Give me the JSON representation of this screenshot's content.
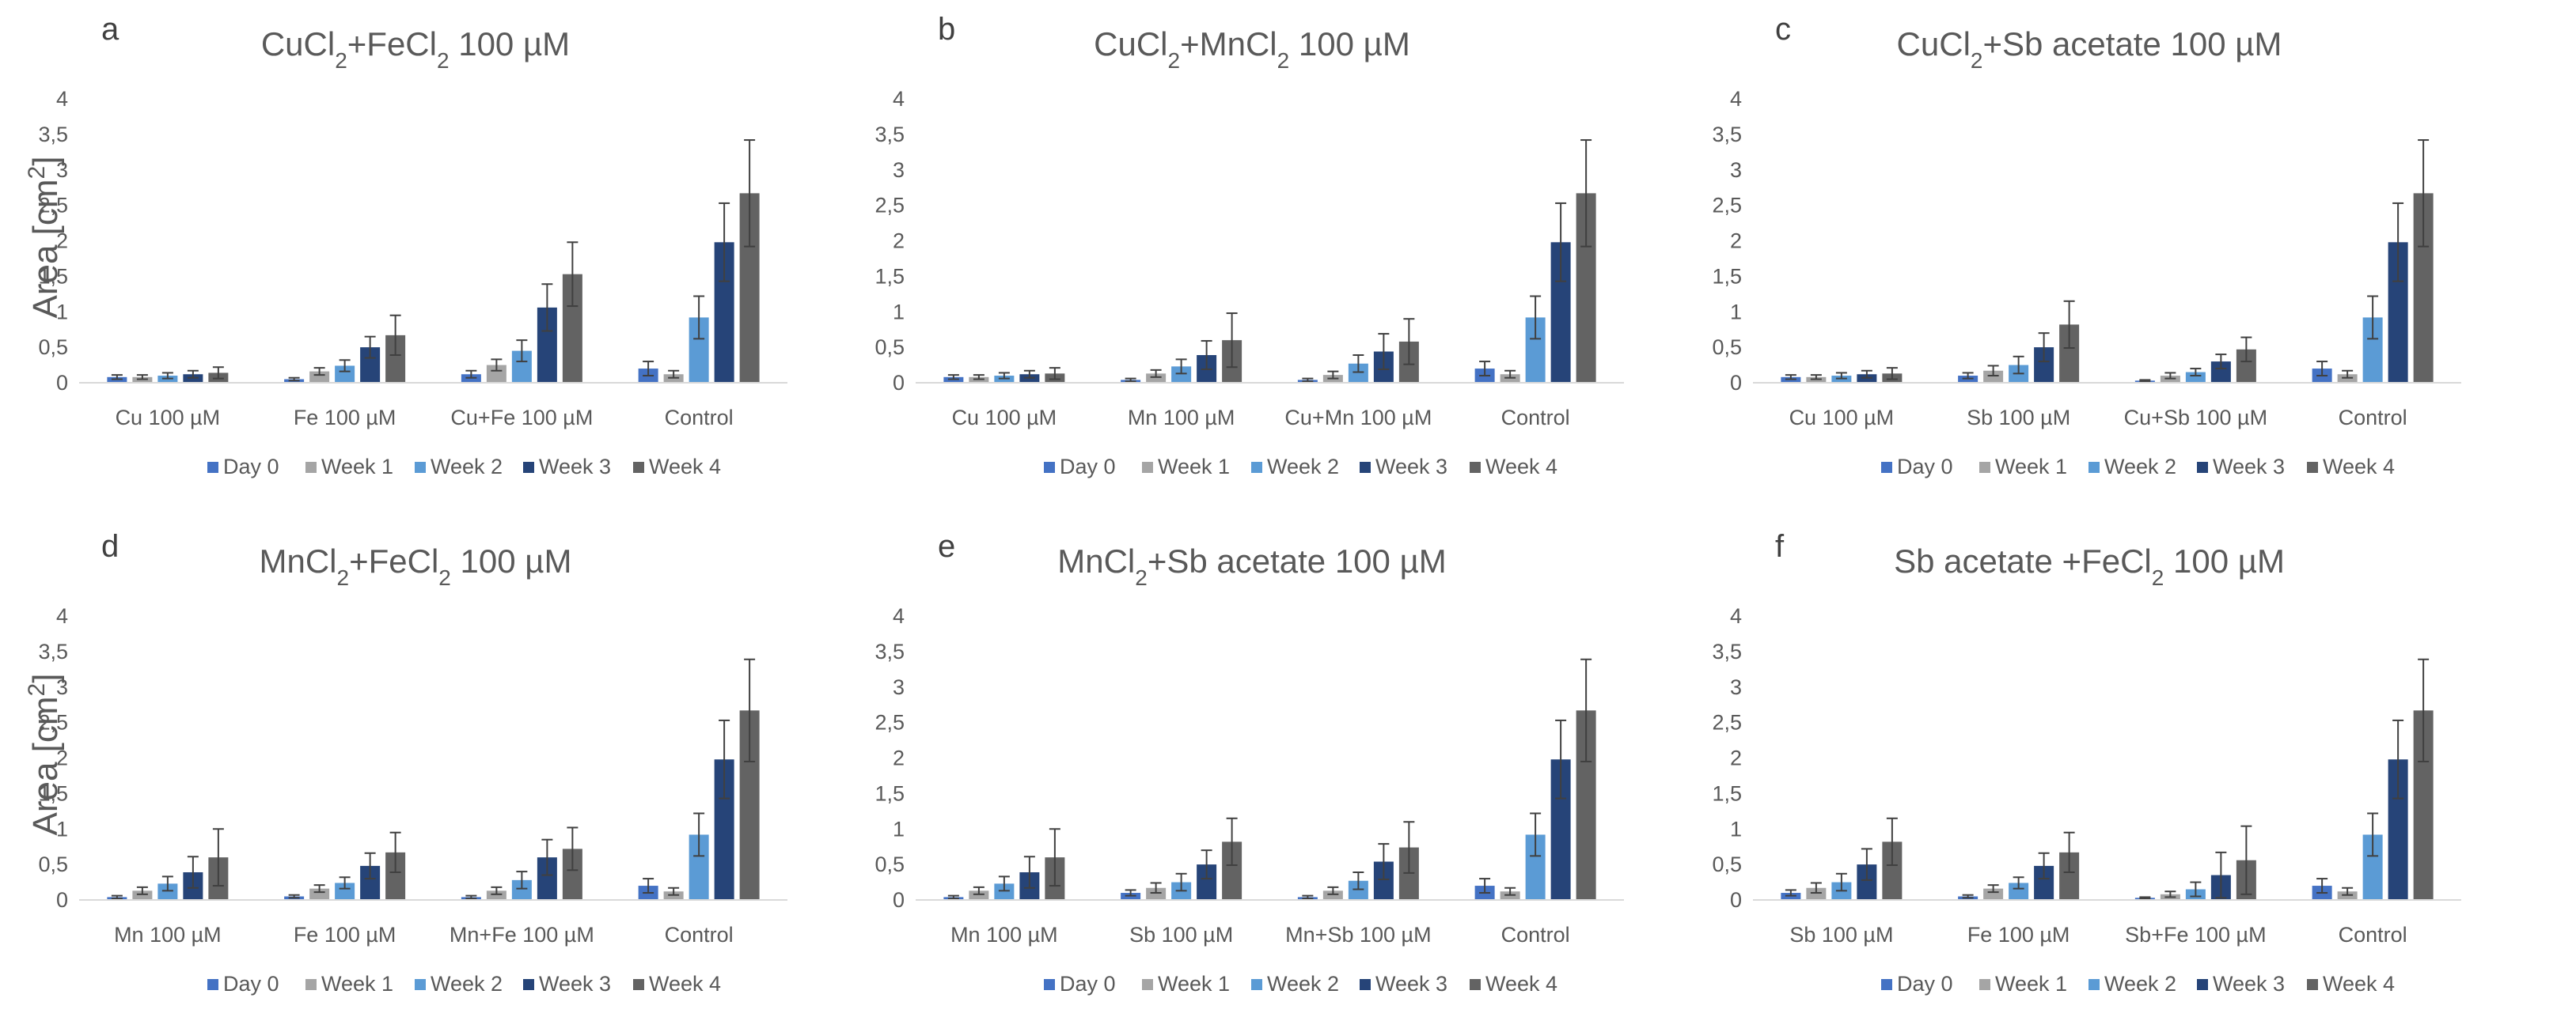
{
  "figure": {
    "ylabel_text": "Area [cm",
    "ylabel_sup": "2",
    "ylabel_close": "]"
  },
  "colors": {
    "Day 0": "#4472c4",
    "Week 1": "#a5a5a5",
    "Week 2": "#5b9bd5",
    "Week 3": "#264478",
    "Week 4": "#636363",
    "axis": "#d9d9d9",
    "errorbar": "#404040"
  },
  "chart_data": [
    {
      "type": "bar",
      "panel": "a",
      "title_parts": [
        [
          "CuCl",
          "n"
        ],
        [
          "2",
          "sub"
        ],
        [
          "+FeCl",
          "n"
        ],
        [
          "2",
          "sub"
        ],
        [
          " 100 µM",
          "n"
        ]
      ],
      "ylabel": "Area [cm2]",
      "ylim": [
        0,
        4
      ],
      "yticks": [
        "0",
        "0,5",
        "1",
        "1,5",
        "2",
        "2,5",
        "3",
        "3,5",
        "4"
      ],
      "grid": false,
      "legend_position": "bottom",
      "categories": [
        "Cu 100 µM",
        "Fe 100 µM",
        "Cu+Fe 100 µM",
        "Control"
      ],
      "series": [
        {
          "name": "Day 0",
          "values": [
            0.08,
            0.05,
            0.12,
            0.2
          ],
          "errors": [
            0.03,
            0.02,
            0.05,
            0.1
          ]
        },
        {
          "name": "Week 1",
          "values": [
            0.08,
            0.16,
            0.25,
            0.12
          ],
          "errors": [
            0.03,
            0.05,
            0.08,
            0.05
          ]
        },
        {
          "name": "Week 2",
          "values": [
            0.1,
            0.24,
            0.45,
            0.92
          ],
          "errors": [
            0.04,
            0.08,
            0.15,
            0.3
          ]
        },
        {
          "name": "Week 3",
          "values": [
            0.12,
            0.5,
            1.06,
            1.98
          ],
          "errors": [
            0.05,
            0.15,
            0.33,
            0.55
          ]
        },
        {
          "name": "Week 4",
          "values": [
            0.14,
            0.67,
            1.53,
            2.67
          ],
          "errors": [
            0.08,
            0.28,
            0.45,
            0.75
          ]
        }
      ]
    },
    {
      "type": "bar",
      "panel": "b",
      "title_parts": [
        [
          "CuCl",
          "n"
        ],
        [
          "2",
          "sub"
        ],
        [
          "+MnCl",
          "n"
        ],
        [
          "2",
          "sub"
        ],
        [
          " 100 µM",
          "n"
        ]
      ],
      "ylabel": "",
      "ylim": [
        0,
        4
      ],
      "yticks": [
        "0",
        "0,5",
        "1",
        "1,5",
        "2",
        "2,5",
        "3",
        "3,5",
        "4"
      ],
      "grid": false,
      "legend_position": "bottom",
      "categories": [
        "Cu 100 µM",
        "Mn 100 µM",
        "Cu+Mn 100 µM",
        "Control"
      ],
      "series": [
        {
          "name": "Day 0",
          "values": [
            0.08,
            0.04,
            0.04,
            0.2
          ],
          "errors": [
            0.03,
            0.02,
            0.02,
            0.1
          ]
        },
        {
          "name": "Week 1",
          "values": [
            0.08,
            0.13,
            0.11,
            0.12
          ],
          "errors": [
            0.03,
            0.05,
            0.05,
            0.05
          ]
        },
        {
          "name": "Week 2",
          "values": [
            0.1,
            0.23,
            0.27,
            0.92
          ],
          "errors": [
            0.04,
            0.1,
            0.12,
            0.3
          ]
        },
        {
          "name": "Week 3",
          "values": [
            0.12,
            0.39,
            0.44,
            1.98
          ],
          "errors": [
            0.05,
            0.2,
            0.25,
            0.55
          ]
        },
        {
          "name": "Week 4",
          "values": [
            0.13,
            0.6,
            0.58,
            2.67
          ],
          "errors": [
            0.08,
            0.38,
            0.32,
            0.75
          ]
        }
      ]
    },
    {
      "type": "bar",
      "panel": "c",
      "title_parts": [
        [
          "CuCl",
          "n"
        ],
        [
          "2",
          "sub"
        ],
        [
          "+Sb acetate 100 µM",
          "n"
        ]
      ],
      "ylabel": "",
      "ylim": [
        0,
        4
      ],
      "yticks": [
        "0",
        "0,5",
        "1",
        "1,5",
        "2",
        "2,5",
        "3",
        "3,5",
        "4"
      ],
      "grid": false,
      "legend_position": "bottom",
      "categories": [
        "Cu 100 µM",
        "Sb 100 µM",
        "Cu+Sb 100 µM",
        "Control"
      ],
      "series": [
        {
          "name": "Day 0",
          "values": [
            0.08,
            0.1,
            0.03,
            0.2
          ],
          "errors": [
            0.03,
            0.04,
            0.01,
            0.1
          ]
        },
        {
          "name": "Week 1",
          "values": [
            0.08,
            0.17,
            0.1,
            0.12
          ],
          "errors": [
            0.03,
            0.07,
            0.04,
            0.05
          ]
        },
        {
          "name": "Week 2",
          "values": [
            0.1,
            0.25,
            0.15,
            0.92
          ],
          "errors": [
            0.04,
            0.12,
            0.05,
            0.3
          ]
        },
        {
          "name": "Week 3",
          "values": [
            0.12,
            0.5,
            0.3,
            1.98
          ],
          "errors": [
            0.05,
            0.2,
            0.1,
            0.55
          ]
        },
        {
          "name": "Week 4",
          "values": [
            0.13,
            0.82,
            0.47,
            2.67
          ],
          "errors": [
            0.08,
            0.33,
            0.17,
            0.75
          ]
        }
      ]
    },
    {
      "type": "bar",
      "panel": "d",
      "title_parts": [
        [
          "MnCl",
          "n"
        ],
        [
          "2",
          "sub"
        ],
        [
          "+FeCl",
          "n"
        ],
        [
          "2",
          "sub"
        ],
        [
          " 100 µM",
          "n"
        ]
      ],
      "ylabel": "Area [cm2]",
      "ylim": [
        0,
        4
      ],
      "yticks": [
        "0",
        "0,5",
        "1",
        "1,5",
        "2",
        "2,5",
        "3",
        "3,5",
        "4"
      ],
      "grid": false,
      "legend_position": "bottom",
      "categories": [
        "Mn 100 µM",
        "Fe 100 µM",
        "Mn+Fe 100 µM",
        "Control"
      ],
      "series": [
        {
          "name": "Day 0",
          "values": [
            0.04,
            0.05,
            0.04,
            0.2
          ],
          "errors": [
            0.02,
            0.02,
            0.02,
            0.1
          ]
        },
        {
          "name": "Week 1",
          "values": [
            0.13,
            0.16,
            0.13,
            0.12
          ],
          "errors": [
            0.05,
            0.05,
            0.05,
            0.05
          ]
        },
        {
          "name": "Week 2",
          "values": [
            0.23,
            0.24,
            0.28,
            0.92
          ],
          "errors": [
            0.1,
            0.08,
            0.12,
            0.3
          ]
        },
        {
          "name": "Week 3",
          "values": [
            0.39,
            0.48,
            0.6,
            1.98
          ],
          "errors": [
            0.22,
            0.18,
            0.25,
            0.55
          ]
        },
        {
          "name": "Week 4",
          "values": [
            0.6,
            0.67,
            0.72,
            2.67
          ],
          "errors": [
            0.4,
            0.28,
            0.3,
            0.72
          ]
        }
      ]
    },
    {
      "type": "bar",
      "panel": "e",
      "title_parts": [
        [
          "MnCl",
          "n"
        ],
        [
          "2",
          "sub"
        ],
        [
          "+Sb acetate 100 µM",
          "n"
        ]
      ],
      "ylabel": "",
      "ylim": [
        0,
        4
      ],
      "yticks": [
        "0",
        "0,5",
        "1",
        "1,5",
        "2",
        "2,5",
        "3",
        "3,5",
        "4"
      ],
      "grid": false,
      "legend_position": "bottom",
      "categories": [
        "Mn 100 µM",
        "Sb 100 µM",
        "Mn+Sb 100 µM",
        "Control"
      ],
      "series": [
        {
          "name": "Day 0",
          "values": [
            0.04,
            0.1,
            0.04,
            0.2
          ],
          "errors": [
            0.02,
            0.04,
            0.02,
            0.1
          ]
        },
        {
          "name": "Week 1",
          "values": [
            0.13,
            0.17,
            0.13,
            0.12
          ],
          "errors": [
            0.05,
            0.07,
            0.05,
            0.05
          ]
        },
        {
          "name": "Week 2",
          "values": [
            0.23,
            0.25,
            0.27,
            0.92
          ],
          "errors": [
            0.1,
            0.12,
            0.12,
            0.3
          ]
        },
        {
          "name": "Week 3",
          "values": [
            0.39,
            0.5,
            0.54,
            1.98
          ],
          "errors": [
            0.22,
            0.2,
            0.25,
            0.55
          ]
        },
        {
          "name": "Week 4",
          "values": [
            0.6,
            0.82,
            0.74,
            2.67
          ],
          "errors": [
            0.4,
            0.33,
            0.36,
            0.72
          ]
        }
      ]
    },
    {
      "type": "bar",
      "panel": "f",
      "title_parts": [
        [
          "Sb acetate +FeCl",
          "n"
        ],
        [
          "2",
          "sub"
        ],
        [
          " 100 µM",
          "n"
        ]
      ],
      "ylabel": "",
      "ylim": [
        0,
        4
      ],
      "yticks": [
        "0",
        "0,5",
        "1",
        "1,5",
        "2",
        "2,5",
        "3",
        "3,5",
        "4"
      ],
      "grid": false,
      "legend_position": "bottom",
      "categories": [
        "Sb 100 µM",
        "Fe 100 µM",
        "Sb+Fe 100 µM",
        "Control"
      ],
      "series": [
        {
          "name": "Day 0",
          "values": [
            0.1,
            0.05,
            0.03,
            0.2
          ],
          "errors": [
            0.04,
            0.02,
            0.01,
            0.1
          ]
        },
        {
          "name": "Week 1",
          "values": [
            0.17,
            0.16,
            0.08,
            0.12
          ],
          "errors": [
            0.07,
            0.05,
            0.04,
            0.05
          ]
        },
        {
          "name": "Week 2",
          "values": [
            0.25,
            0.24,
            0.15,
            0.92
          ],
          "errors": [
            0.12,
            0.08,
            0.1,
            0.3
          ]
        },
        {
          "name": "Week 3",
          "values": [
            0.5,
            0.48,
            0.35,
            1.98
          ],
          "errors": [
            0.22,
            0.18,
            0.32,
            0.55
          ]
        },
        {
          "name": "Week 4",
          "values": [
            0.82,
            0.67,
            0.56,
            2.67
          ],
          "errors": [
            0.33,
            0.28,
            0.48,
            0.72
          ]
        }
      ]
    }
  ]
}
